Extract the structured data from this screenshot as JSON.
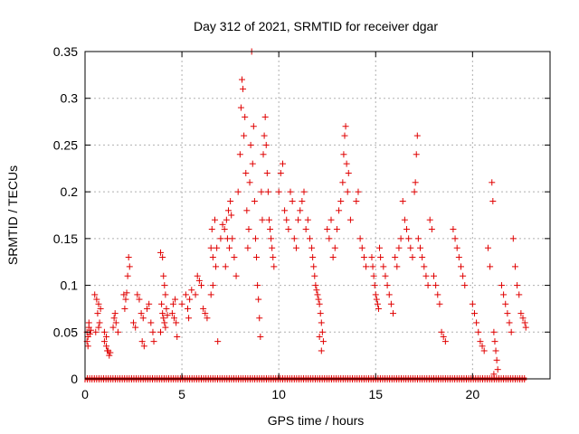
{
  "chart_data": {
    "type": "scatter",
    "title": "Day 312 of 2021, SRMTID for receiver dgar",
    "xlabel": "GPS time / hours",
    "ylabel": "SRMTID / TECUs",
    "xlim": [
      0,
      24
    ],
    "ylim": [
      0,
      0.35
    ],
    "xticks": [
      "0",
      "5",
      "10",
      "15",
      "20"
    ],
    "xtick_values": [
      0,
      5,
      10,
      15,
      20
    ],
    "yticks": [
      "0",
      "0.05",
      "0.1",
      "0.15",
      "0.2",
      "0.25",
      "0.3",
      "0.35"
    ],
    "ytick_values": [
      0,
      0.05,
      0.1,
      0.15,
      0.2,
      0.25,
      0.3,
      0.35
    ],
    "grid": true,
    "marker": "+",
    "color": "#e00000",
    "series": [
      {
        "name": "SRMTID",
        "points": [
          [
            0.1,
            0.05
          ],
          [
            0.15,
            0.045
          ],
          [
            0.2,
            0.055
          ],
          [
            0.25,
            0.048
          ],
          [
            0.3,
            0.052
          ],
          [
            0.1,
            0.04
          ],
          [
            0.2,
            0.06
          ],
          [
            0.15,
            0.035
          ],
          [
            0.5,
            0.09
          ],
          [
            0.6,
            0.085
          ],
          [
            0.7,
            0.08
          ],
          [
            0.65,
            0.07
          ],
          [
            0.75,
            0.06
          ],
          [
            0.8,
            0.075
          ],
          [
            0.55,
            0.05
          ],
          [
            0.7,
            0.055
          ],
          [
            1.0,
            0.04
          ],
          [
            1.1,
            0.035
          ],
          [
            1.2,
            0.03
          ],
          [
            1.3,
            0.028
          ],
          [
            1.25,
            0.025
          ],
          [
            1.1,
            0.045
          ],
          [
            1.0,
            0.05
          ],
          [
            1.15,
            0.03
          ],
          [
            1.5,
            0.065
          ],
          [
            1.6,
            0.06
          ],
          [
            1.55,
            0.07
          ],
          [
            1.7,
            0.05
          ],
          [
            1.45,
            0.055
          ],
          [
            2.0,
            0.09
          ],
          [
            2.1,
            0.085
          ],
          [
            2.2,
            0.11
          ],
          [
            2.25,
            0.13
          ],
          [
            2.3,
            0.12
          ],
          [
            2.15,
            0.092
          ],
          [
            2.05,
            0.075
          ],
          [
            2.5,
            0.06
          ],
          [
            2.6,
            0.055
          ],
          [
            2.7,
            0.09
          ],
          [
            2.8,
            0.085
          ],
          [
            2.9,
            0.07
          ],
          [
            3.0,
            0.065
          ],
          [
            2.95,
            0.04
          ],
          [
            3.05,
            0.035
          ],
          [
            3.2,
            0.075
          ],
          [
            3.3,
            0.08
          ],
          [
            3.4,
            0.06
          ],
          [
            3.5,
            0.05
          ],
          [
            3.55,
            0.04
          ],
          [
            3.9,
            0.135
          ],
          [
            4.0,
            0.13
          ],
          [
            4.05,
            0.11
          ],
          [
            4.1,
            0.1
          ],
          [
            3.95,
            0.08
          ],
          [
            4.0,
            0.07
          ],
          [
            4.05,
            0.065
          ],
          [
            4.1,
            0.06
          ],
          [
            4.15,
            0.055
          ],
          [
            3.9,
            0.05
          ],
          [
            4.2,
            0.075
          ],
          [
            4.25,
            0.068
          ],
          [
            4.15,
            0.09
          ],
          [
            4.5,
            0.07
          ],
          [
            4.6,
            0.065
          ],
          [
            4.7,
            0.06
          ],
          [
            4.55,
            0.08
          ],
          [
            4.65,
            0.085
          ],
          [
            4.75,
            0.045
          ],
          [
            5.0,
            0.08
          ],
          [
            5.2,
            0.09
          ],
          [
            5.3,
            0.075
          ],
          [
            5.4,
            0.085
          ],
          [
            5.5,
            0.095
          ],
          [
            5.35,
            0.065
          ],
          [
            5.8,
            0.11
          ],
          [
            5.9,
            0.105
          ],
          [
            5.7,
            0.09
          ],
          [
            6.0,
            0.1
          ],
          [
            6.1,
            0.075
          ],
          [
            6.2,
            0.07
          ],
          [
            6.3,
            0.065
          ],
          [
            6.5,
            0.14
          ],
          [
            6.6,
            0.13
          ],
          [
            6.55,
            0.16
          ],
          [
            6.7,
            0.17
          ],
          [
            6.75,
            0.12
          ],
          [
            6.6,
            0.1
          ],
          [
            6.5,
            0.09
          ],
          [
            6.8,
            0.14
          ],
          [
            6.85,
            0.04
          ],
          [
            7.0,
            0.15
          ],
          [
            7.1,
            0.165
          ],
          [
            7.2,
            0.16
          ],
          [
            7.3,
            0.17
          ],
          [
            7.4,
            0.18
          ],
          [
            7.5,
            0.19
          ],
          [
            7.35,
            0.15
          ],
          [
            7.45,
            0.14
          ],
          [
            7.55,
            0.175
          ],
          [
            7.25,
            0.12
          ],
          [
            7.6,
            0.15
          ],
          [
            7.7,
            0.13
          ],
          [
            7.8,
            0.11
          ],
          [
            7.9,
            0.2
          ],
          [
            8.0,
            0.24
          ],
          [
            8.05,
            0.29
          ],
          [
            8.1,
            0.32
          ],
          [
            8.15,
            0.31
          ],
          [
            8.2,
            0.26
          ],
          [
            8.25,
            0.28
          ],
          [
            8.3,
            0.22
          ],
          [
            8.35,
            0.18
          ],
          [
            8.4,
            0.14
          ],
          [
            8.45,
            0.16
          ],
          [
            8.5,
            0.21
          ],
          [
            8.55,
            0.25
          ],
          [
            8.6,
            0.35
          ],
          [
            8.65,
            0.23
          ],
          [
            8.7,
            0.27
          ],
          [
            8.75,
            0.19
          ],
          [
            8.8,
            0.15
          ],
          [
            8.85,
            0.13
          ],
          [
            8.9,
            0.1
          ],
          [
            8.95,
            0.085
          ],
          [
            9.0,
            0.065
          ],
          [
            9.05,
            0.045
          ],
          [
            9.1,
            0.2
          ],
          [
            9.15,
            0.17
          ],
          [
            9.2,
            0.24
          ],
          [
            9.25,
            0.26
          ],
          [
            9.3,
            0.28
          ],
          [
            9.35,
            0.25
          ],
          [
            9.4,
            0.22
          ],
          [
            9.45,
            0.2
          ],
          [
            9.5,
            0.17
          ],
          [
            9.55,
            0.16
          ],
          [
            9.6,
            0.15
          ],
          [
            9.65,
            0.14
          ],
          [
            9.7,
            0.13
          ],
          [
            9.75,
            0.12
          ],
          [
            10.0,
            0.2
          ],
          [
            10.1,
            0.22
          ],
          [
            10.2,
            0.23
          ],
          [
            10.3,
            0.18
          ],
          [
            10.4,
            0.17
          ],
          [
            10.5,
            0.16
          ],
          [
            10.6,
            0.2
          ],
          [
            10.7,
            0.19
          ],
          [
            10.8,
            0.15
          ],
          [
            10.9,
            0.14
          ],
          [
            11.0,
            0.17
          ],
          [
            11.1,
            0.18
          ],
          [
            11.2,
            0.19
          ],
          [
            11.3,
            0.2
          ],
          [
            11.4,
            0.16
          ],
          [
            11.5,
            0.17
          ],
          [
            11.6,
            0.15
          ],
          [
            11.7,
            0.14
          ],
          [
            11.75,
            0.13
          ],
          [
            11.8,
            0.12
          ],
          [
            11.85,
            0.11
          ],
          [
            11.9,
            0.1
          ],
          [
            11.95,
            0.095
          ],
          [
            12.0,
            0.09
          ],
          [
            12.05,
            0.085
          ],
          [
            12.1,
            0.08
          ],
          [
            12.15,
            0.07
          ],
          [
            12.2,
            0.06
          ],
          [
            12.25,
            0.05
          ],
          [
            12.3,
            0.04
          ],
          [
            12.2,
            0.03
          ],
          [
            12.1,
            0.045
          ],
          [
            12.5,
            0.16
          ],
          [
            12.6,
            0.15
          ],
          [
            12.7,
            0.17
          ],
          [
            12.8,
            0.13
          ],
          [
            12.9,
            0.14
          ],
          [
            13.0,
            0.16
          ],
          [
            13.1,
            0.18
          ],
          [
            13.2,
            0.19
          ],
          [
            13.3,
            0.21
          ],
          [
            13.35,
            0.24
          ],
          [
            13.4,
            0.26
          ],
          [
            13.45,
            0.27
          ],
          [
            13.5,
            0.23
          ],
          [
            13.55,
            0.2
          ],
          [
            13.6,
            0.22
          ],
          [
            13.7,
            0.17
          ],
          [
            14.0,
            0.19
          ],
          [
            14.1,
            0.2
          ],
          [
            14.2,
            0.15
          ],
          [
            14.3,
            0.14
          ],
          [
            14.4,
            0.13
          ],
          [
            14.5,
            0.12
          ],
          [
            14.8,
            0.13
          ],
          [
            14.85,
            0.12
          ],
          [
            14.9,
            0.11
          ],
          [
            14.95,
            0.1
          ],
          [
            15.0,
            0.09
          ],
          [
            15.05,
            0.085
          ],
          [
            15.1,
            0.08
          ],
          [
            15.15,
            0.075
          ],
          [
            15.2,
            0.14
          ],
          [
            15.25,
            0.13
          ],
          [
            15.4,
            0.12
          ],
          [
            15.5,
            0.11
          ],
          [
            15.6,
            0.1
          ],
          [
            15.7,
            0.09
          ],
          [
            15.8,
            0.08
          ],
          [
            15.9,
            0.07
          ],
          [
            16.0,
            0.13
          ],
          [
            16.1,
            0.12
          ],
          [
            16.2,
            0.14
          ],
          [
            16.3,
            0.15
          ],
          [
            16.4,
            0.19
          ],
          [
            16.5,
            0.17
          ],
          [
            16.6,
            0.16
          ],
          [
            16.7,
            0.15
          ],
          [
            16.8,
            0.14
          ],
          [
            16.9,
            0.13
          ],
          [
            17.0,
            0.2
          ],
          [
            17.05,
            0.21
          ],
          [
            17.1,
            0.24
          ],
          [
            17.15,
            0.26
          ],
          [
            17.2,
            0.15
          ],
          [
            17.3,
            0.14
          ],
          [
            17.4,
            0.13
          ],
          [
            17.5,
            0.12
          ],
          [
            17.6,
            0.11
          ],
          [
            17.7,
            0.1
          ],
          [
            17.8,
            0.17
          ],
          [
            17.9,
            0.16
          ],
          [
            18.0,
            0.11
          ],
          [
            18.1,
            0.1
          ],
          [
            18.2,
            0.09
          ],
          [
            18.3,
            0.08
          ],
          [
            18.4,
            0.05
          ],
          [
            18.5,
            0.045
          ],
          [
            18.6,
            0.04
          ],
          [
            19.0,
            0.16
          ],
          [
            19.1,
            0.15
          ],
          [
            19.2,
            0.14
          ],
          [
            19.3,
            0.13
          ],
          [
            19.4,
            0.12
          ],
          [
            19.5,
            0.11
          ],
          [
            19.6,
            0.1
          ],
          [
            20.0,
            0.08
          ],
          [
            20.1,
            0.07
          ],
          [
            20.2,
            0.06
          ],
          [
            20.3,
            0.05
          ],
          [
            20.4,
            0.04
          ],
          [
            20.5,
            0.035
          ],
          [
            20.6,
            0.03
          ],
          [
            20.8,
            0.14
          ],
          [
            20.9,
            0.12
          ],
          [
            21.0,
            0.21
          ],
          [
            21.05,
            0.19
          ],
          [
            21.1,
            0.05
          ],
          [
            21.15,
            0.04
          ],
          [
            21.2,
            0.03
          ],
          [
            21.25,
            0.02
          ],
          [
            21.3,
            0.01
          ],
          [
            21.1,
            0.005
          ],
          [
            21.5,
            0.1
          ],
          [
            21.6,
            0.09
          ],
          [
            21.7,
            0.08
          ],
          [
            21.8,
            0.07
          ],
          [
            21.9,
            0.06
          ],
          [
            22.0,
            0.05
          ],
          [
            22.1,
            0.15
          ],
          [
            22.2,
            0.12
          ],
          [
            22.3,
            0.1
          ],
          [
            22.4,
            0.09
          ],
          [
            22.5,
            0.07
          ],
          [
            22.6,
            0.065
          ],
          [
            22.7,
            0.06
          ],
          [
            22.75,
            0.055
          ]
        ]
      }
    ]
  }
}
